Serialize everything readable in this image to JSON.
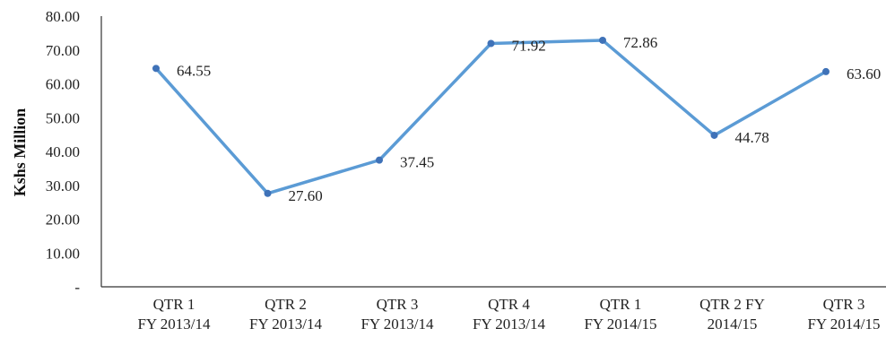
{
  "chart_data": {
    "type": "line",
    "title": "",
    "xlabel": "",
    "ylabel": "Kshs Million",
    "ylim": [
      0,
      80
    ],
    "y_ticks": [
      "-",
      "10.00",
      "20.00",
      "30.00",
      "40.00",
      "50.00",
      "60.00",
      "70.00",
      "80.00"
    ],
    "y_tick_values": [
      0,
      10,
      20,
      30,
      40,
      50,
      60,
      70,
      80
    ],
    "categories": [
      [
        "QTR 1",
        "FY 2013/14"
      ],
      [
        "QTR 2",
        "FY 2013/14"
      ],
      [
        "QTR 3",
        "FY 2013/14"
      ],
      [
        "QTR 4",
        "FY 2013/14"
      ],
      [
        "QTR 1",
        "FY 2014/15"
      ],
      [
        "QTR 2 FY",
        "2014/15"
      ],
      [
        "QTR 3",
        "FY 2014/15"
      ]
    ],
    "series": [
      {
        "values": [
          64.55,
          27.6,
          37.45,
          71.92,
          72.86,
          44.78,
          63.6
        ],
        "data_labels": [
          "64.55",
          "27.60",
          "37.45",
          "71.92",
          "72.86",
          "44.78",
          "63.60"
        ],
        "color": "#5b9bd5"
      }
    ],
    "grid": false,
    "legend": "none"
  }
}
